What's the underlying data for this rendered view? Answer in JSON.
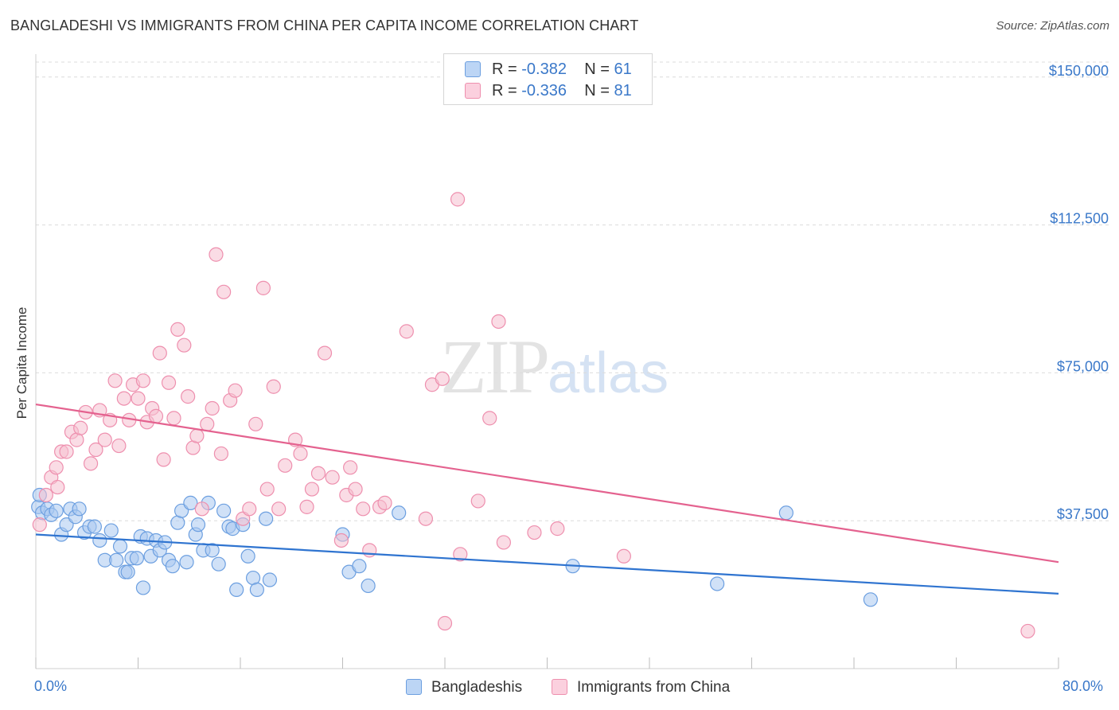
{
  "header": {
    "title": "BANGLADESHI VS IMMIGRANTS FROM CHINA PER CAPITA INCOME CORRELATION CHART",
    "source": "Source: ZipAtlas.com"
  },
  "watermark": {
    "zip": "ZIP",
    "atlas": "atlas"
  },
  "legend": {
    "series1": {
      "r_label": "R = ",
      "r_value": "-0.382",
      "n_label": "N = ",
      "n_value": "61"
    },
    "series2": {
      "r_label": "R = ",
      "r_value": "-0.336",
      "n_label": "N = ",
      "n_value": "81"
    }
  },
  "bottom_legend": {
    "series1": "Bangladeshis",
    "series2": "Immigrants from China"
  },
  "colors": {
    "blue_fill": "#a9c8f0",
    "blue_stroke": "#6c9fe0",
    "blue_line": "#2f74d0",
    "pink_fill": "#f6bfd0",
    "pink_stroke": "#ee8fae",
    "pink_line": "#e4628f",
    "accent_text": "#3a78c9",
    "grid": "#dcdcdc"
  },
  "chart_data": {
    "type": "scatter",
    "title": "BANGLADESHI VS IMMIGRANTS FROM CHINA PER CAPITA INCOME CORRELATION CHART",
    "xlabel": "",
    "ylabel": "Per Capita Income",
    "xlim": [
      0,
      80
    ],
    "ylim": [
      0,
      155000
    ],
    "x_tick_labels": [
      "0.0%",
      "80.0%"
    ],
    "y_ticks": [
      37500,
      75000,
      112500,
      150000
    ],
    "y_tick_labels": [
      "$37,500",
      "$75,000",
      "$112,500",
      "$150,000"
    ],
    "grid": "horizontal dashed",
    "legend_position": "top-center",
    "series": [
      {
        "name": "Bangladeshis",
        "color": "#a9c8f0",
        "trend": {
          "x": [
            0,
            80
          ],
          "y": [
            34000,
            19000
          ]
        },
        "points": [
          [
            0.2,
            41000
          ],
          [
            0.5,
            39500
          ],
          [
            0.9,
            40500
          ],
          [
            1.2,
            39000
          ],
          [
            1.6,
            40000
          ],
          [
            2.0,
            34000
          ],
          [
            2.4,
            36500
          ],
          [
            2.7,
            40500
          ],
          [
            3.1,
            38500
          ],
          [
            3.4,
            40500
          ],
          [
            3.8,
            34500
          ],
          [
            4.2,
            36000
          ],
          [
            4.6,
            36000
          ],
          [
            5.0,
            32500
          ],
          [
            5.4,
            27500
          ],
          [
            5.9,
            35000
          ],
          [
            6.3,
            27500
          ],
          [
            6.6,
            31000
          ],
          [
            7.0,
            24500
          ],
          [
            7.2,
            24500
          ],
          [
            7.5,
            28000
          ],
          [
            7.9,
            28000
          ],
          [
            8.2,
            33500
          ],
          [
            8.4,
            20500
          ],
          [
            8.7,
            33000
          ],
          [
            9.0,
            28500
          ],
          [
            9.4,
            32500
          ],
          [
            9.7,
            30000
          ],
          [
            10.1,
            32000
          ],
          [
            10.4,
            27500
          ],
          [
            10.7,
            26000
          ],
          [
            11.1,
            37000
          ],
          [
            11.4,
            40000
          ],
          [
            11.8,
            27000
          ],
          [
            12.1,
            42000
          ],
          [
            12.5,
            34000
          ],
          [
            12.7,
            36500
          ],
          [
            13.1,
            30000
          ],
          [
            13.5,
            42000
          ],
          [
            13.8,
            30000
          ],
          [
            14.3,
            26500
          ],
          [
            14.7,
            40000
          ],
          [
            15.1,
            36000
          ],
          [
            15.4,
            35500
          ],
          [
            15.7,
            20000
          ],
          [
            16.2,
            36500
          ],
          [
            16.6,
            28500
          ],
          [
            17.0,
            23000
          ],
          [
            17.3,
            20000
          ],
          [
            18.0,
            38000
          ],
          [
            18.3,
            22500
          ],
          [
            24.0,
            34000
          ],
          [
            24.5,
            24500
          ],
          [
            25.3,
            26000
          ],
          [
            26.0,
            21000
          ],
          [
            28.4,
            39500
          ],
          [
            42.0,
            26000
          ],
          [
            53.3,
            21500
          ],
          [
            58.7,
            39500
          ],
          [
            65.3,
            17500
          ],
          [
            0.3,
            44000
          ]
        ]
      },
      {
        "name": "Immigrants from China",
        "color": "#f6bfd0",
        "trend": {
          "x": [
            0,
            80
          ],
          "y": [
            67000,
            27000
          ]
        },
        "points": [
          [
            0.3,
            36500
          ],
          [
            0.8,
            44000
          ],
          [
            1.2,
            48500
          ],
          [
            1.6,
            51000
          ],
          [
            2.0,
            55000
          ],
          [
            2.4,
            55000
          ],
          [
            2.8,
            60000
          ],
          [
            3.2,
            58000
          ],
          [
            3.5,
            61000
          ],
          [
            3.9,
            65000
          ],
          [
            4.3,
            52000
          ],
          [
            4.7,
            55500
          ],
          [
            5.0,
            65500
          ],
          [
            5.4,
            58000
          ],
          [
            5.8,
            63000
          ],
          [
            6.2,
            73000
          ],
          [
            6.5,
            56500
          ],
          [
            6.9,
            68500
          ],
          [
            7.3,
            63000
          ],
          [
            7.6,
            72000
          ],
          [
            8.0,
            68500
          ],
          [
            8.4,
            73000
          ],
          [
            8.7,
            62500
          ],
          [
            9.1,
            66000
          ],
          [
            9.4,
            64000
          ],
          [
            9.7,
            80000
          ],
          [
            10.0,
            53000
          ],
          [
            10.4,
            72500
          ],
          [
            10.8,
            63500
          ],
          [
            11.1,
            86000
          ],
          [
            11.6,
            82000
          ],
          [
            11.9,
            69000
          ],
          [
            12.3,
            56000
          ],
          [
            12.6,
            59000
          ],
          [
            13.0,
            40500
          ],
          [
            13.4,
            62000
          ],
          [
            13.8,
            66000
          ],
          [
            14.1,
            105000
          ],
          [
            14.5,
            54500
          ],
          [
            14.7,
            95500
          ],
          [
            15.2,
            68000
          ],
          [
            15.6,
            70500
          ],
          [
            16.2,
            38000
          ],
          [
            16.7,
            40500
          ],
          [
            17.2,
            62000
          ],
          [
            17.8,
            96500
          ],
          [
            18.1,
            45500
          ],
          [
            18.6,
            71500
          ],
          [
            19.0,
            40500
          ],
          [
            19.5,
            51500
          ],
          [
            20.3,
            58000
          ],
          [
            20.7,
            54500
          ],
          [
            21.2,
            41000
          ],
          [
            21.6,
            45500
          ],
          [
            22.1,
            49500
          ],
          [
            22.6,
            80000
          ],
          [
            23.2,
            48500
          ],
          [
            23.9,
            32500
          ],
          [
            24.3,
            44000
          ],
          [
            24.6,
            51000
          ],
          [
            25.0,
            45500
          ],
          [
            25.6,
            40500
          ],
          [
            26.1,
            30000
          ],
          [
            26.9,
            41000
          ],
          [
            27.3,
            42000
          ],
          [
            29.0,
            85500
          ],
          [
            30.5,
            38000
          ],
          [
            31.0,
            72000
          ],
          [
            31.8,
            73500
          ],
          [
            33.0,
            119000
          ],
          [
            32.0,
            11500
          ],
          [
            33.2,
            29000
          ],
          [
            34.6,
            42500
          ],
          [
            35.5,
            63500
          ],
          [
            36.2,
            88000
          ],
          [
            36.6,
            32000
          ],
          [
            39.0,
            34500
          ],
          [
            40.8,
            35500
          ],
          [
            46.0,
            28500
          ],
          [
            77.6,
            9500
          ],
          [
            1.7,
            46000
          ]
        ]
      }
    ]
  }
}
